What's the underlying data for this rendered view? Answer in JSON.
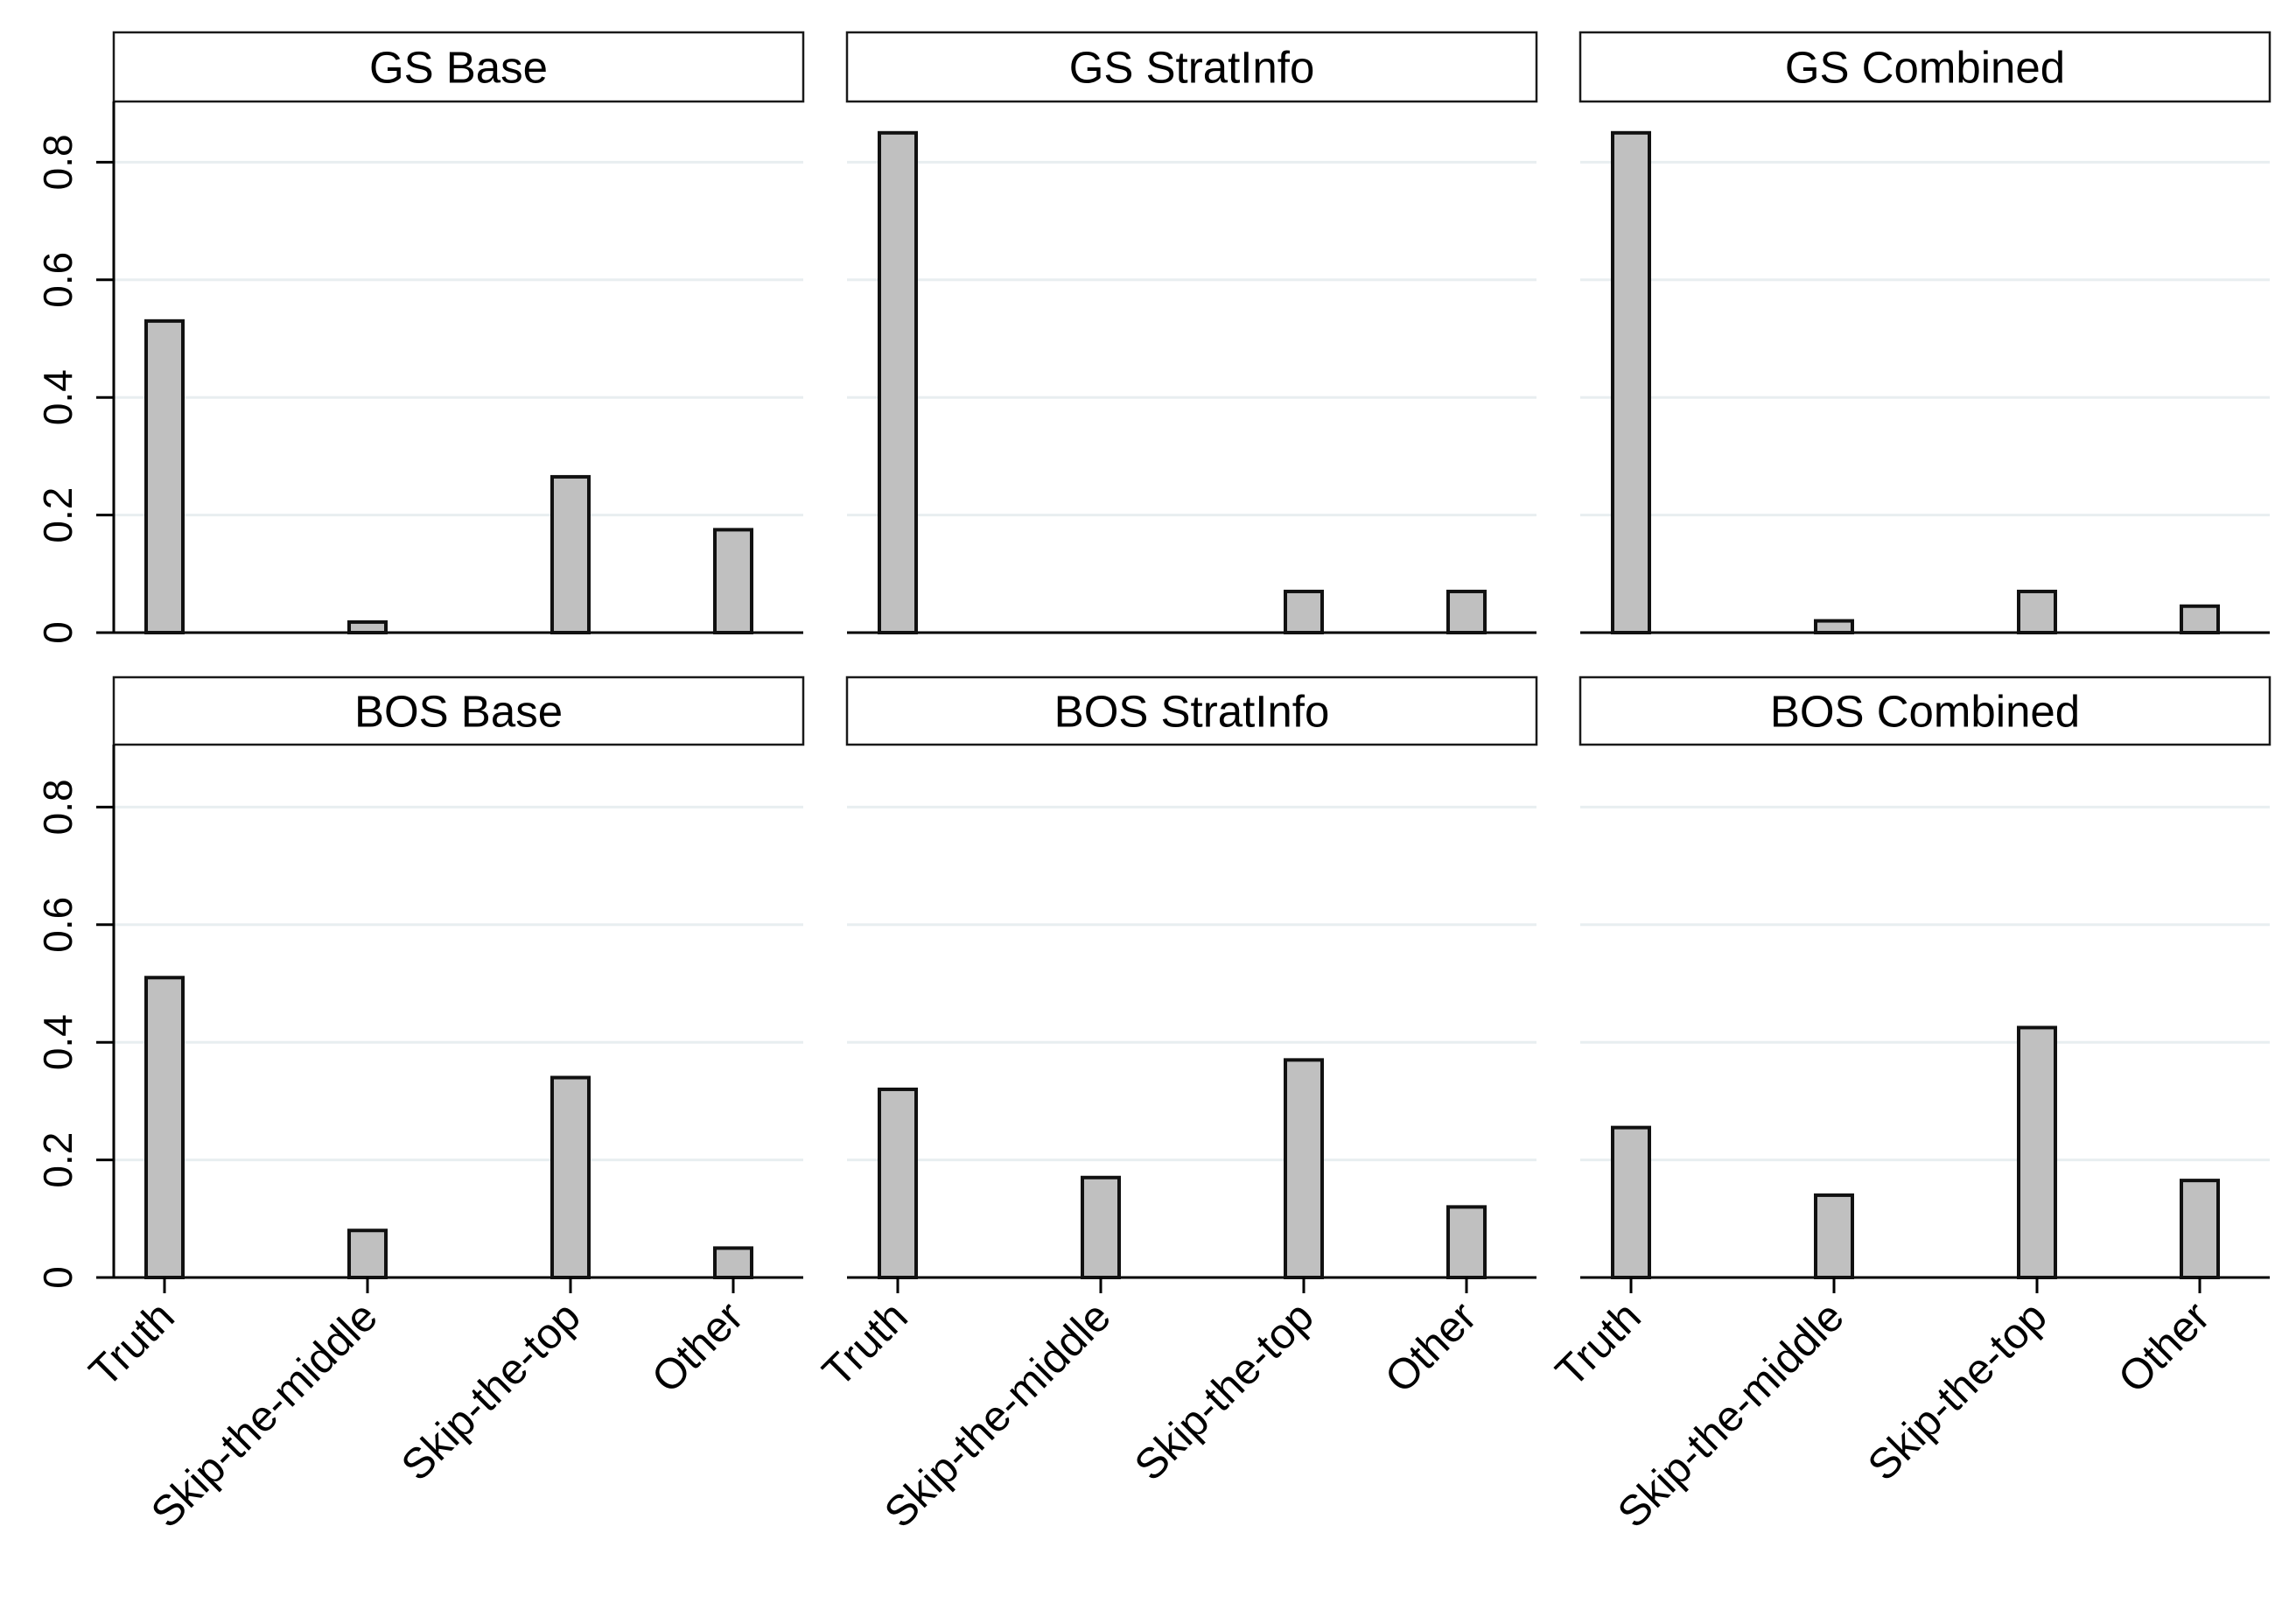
{
  "colors": {
    "bar_fill": "#c0c0c0",
    "bar_stroke": "#111111",
    "gridline": "#e8eef0",
    "axis": "#000000",
    "strip_fill": "#ffffff",
    "strip_stroke": "#1a1a1a"
  },
  "chart_data": {
    "type": "bar",
    "layout": "2x3 small multiples",
    "categories": [
      "Truth",
      "Skip-the-middle",
      "Skip-the-top",
      "Other"
    ],
    "ylim": [
      0,
      0.9
    ],
    "yticks": [
      0,
      0.2,
      0.4,
      0.6,
      0.8
    ],
    "ytick_labels": [
      "0",
      "0.2",
      "0.4",
      "0.6",
      "0.8"
    ],
    "grid": true,
    "panels": [
      {
        "title": "GS Base",
        "values": [
          0.53,
          0.018,
          0.265,
          0.175
        ]
      },
      {
        "title": "GS StratInfo",
        "values": [
          0.85,
          0.0,
          0.07,
          0.07
        ]
      },
      {
        "title": "GS Combined",
        "values": [
          0.85,
          0.02,
          0.07,
          0.045
        ]
      },
      {
        "title": "BOS Base",
        "values": [
          0.51,
          0.08,
          0.34,
          0.05
        ]
      },
      {
        "title": "BOS StratInfo",
        "values": [
          0.32,
          0.17,
          0.37,
          0.12
        ]
      },
      {
        "title": "BOS Combined",
        "values": [
          0.255,
          0.14,
          0.425,
          0.165
        ]
      }
    ]
  }
}
